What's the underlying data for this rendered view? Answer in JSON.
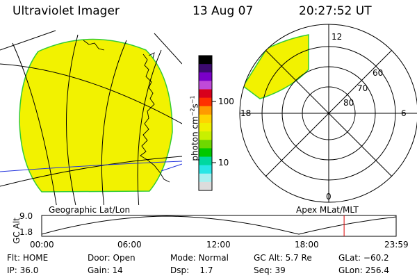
{
  "header": {
    "title": "Ultraviolet Imager",
    "date": "13 Aug 07",
    "time": "20:27:52 UT"
  },
  "colorbar": {
    "unit_label": "photon cm",
    "unit_exp1": "−2",
    "unit_s": "s",
    "unit_exp2": "−1",
    "ticks": [
      "100",
      "10"
    ],
    "colors": [
      "#000000",
      "#3c0a6e",
      "#7a00c8",
      "#c04ad8",
      "#d8001c",
      "#ff3000",
      "#ff9a00",
      "#ffd400",
      "#f0f000",
      "#c8f000",
      "#6ed800",
      "#00c800",
      "#00d8a0",
      "#28e6e6",
      "#a8f0f0",
      "#dcdcdc"
    ]
  },
  "left_map": {
    "label": "Geographic Lat/Lon",
    "fill_color": "#f2f200"
  },
  "right_map": {
    "label": "Apex MLat/MLT",
    "mlt_labels": {
      "top": "12",
      "left": "18",
      "right": "6",
      "bottom": "0"
    },
    "mlat_labels": [
      "60",
      "70",
      "80"
    ]
  },
  "gc_plot": {
    "ylabel": "GC Alt",
    "yticks": [
      "9.0",
      "1.8"
    ],
    "xticks": [
      "00:00",
      "06:00",
      "12:00",
      "18:00",
      "23:59"
    ],
    "marker_color": "#dd0000",
    "marker_time_hours": 20.46
  },
  "status": {
    "row1": [
      {
        "label": "Flt:",
        "value": "HOME"
      },
      {
        "label": "Door:",
        "value": "Open"
      },
      {
        "label": "Mode:",
        "value": "Normal"
      },
      {
        "label": "GC Alt:",
        "value": "5.7 Re"
      },
      {
        "label": "GLat:",
        "value": "−60.2"
      }
    ],
    "row2": [
      {
        "label": "IP:",
        "value": "36.0"
      },
      {
        "label": "Gain:",
        "value": "14"
      },
      {
        "label": "Dsp:",
        "value": "1.7"
      },
      {
        "label": "Seq:",
        "value": "39"
      },
      {
        "label": "GLon:",
        "value": "256.4"
      }
    ]
  }
}
